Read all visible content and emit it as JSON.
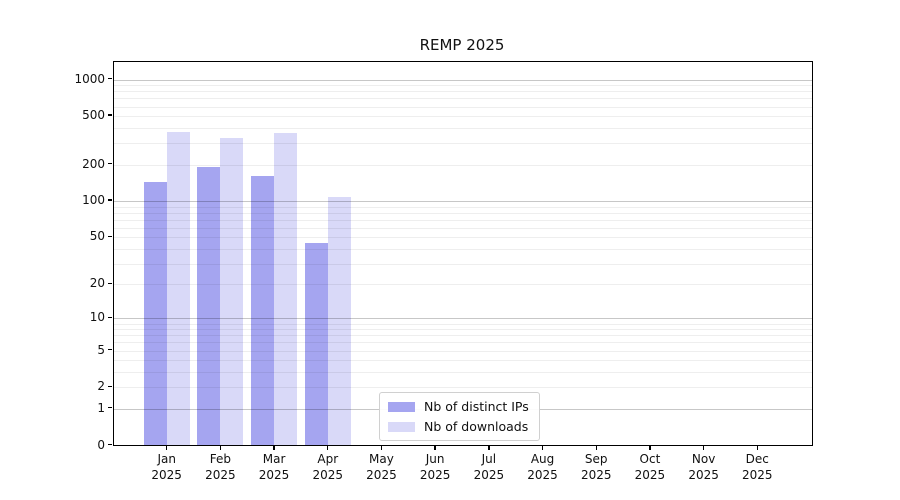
{
  "chart_data": {
    "type": "bar",
    "title": "REMP 2025",
    "yscale": "log1p",
    "xlabel": "",
    "ylabel": "",
    "year": "2025",
    "categories": [
      "Jan",
      "Feb",
      "Mar",
      "Apr",
      "May",
      "Jun",
      "Jul",
      "Aug",
      "Sep",
      "Oct",
      "Nov",
      "Dec"
    ],
    "series": [
      {
        "name": "Nb of distinct IPs",
        "color": "#a5a5f0",
        "values": [
          143,
          190,
          158,
          44,
          0,
          0,
          0,
          0,
          0,
          0,
          0,
          0
        ]
      },
      {
        "name": "Nb of downloads",
        "color": "#d9d9f8",
        "values": [
          367,
          330,
          358,
          107,
          0,
          0,
          0,
          0,
          0,
          0,
          0,
          0
        ]
      }
    ],
    "yticks": [
      0,
      1,
      2,
      5,
      10,
      20,
      50,
      100,
      200,
      500,
      1000
    ],
    "ylim": [
      0,
      1400
    ],
    "grid": "horizontal",
    "grid_major_values": [
      1,
      10,
      100,
      1000
    ],
    "legend_position": "lower-center",
    "colors": {
      "axis": "#000000",
      "text": "#111111",
      "grid_major": "rgba(0,0,0,0.22)",
      "grid_minor": "rgba(0,0,0,0.065)"
    }
  }
}
